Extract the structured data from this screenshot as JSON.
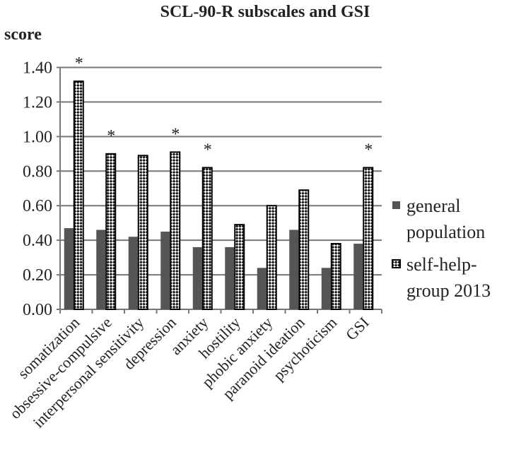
{
  "chart_data": {
    "type": "bar",
    "title": "SCL-90-R subscales and GSI",
    "ylabel": "score",
    "xlabel": "",
    "ylim": [
      0,
      1.4
    ],
    "yticks": [
      "0.00",
      "0.20",
      "0.40",
      "0.60",
      "0.80",
      "1.00",
      "1.20",
      "1.40"
    ],
    "grid": true,
    "legend_position": "right",
    "categories": [
      "somatization",
      "obsessive-compulsive",
      "interpersonal sensitivity",
      "depression",
      "anxiety",
      "hostility",
      "phobic anxiety",
      "paranoid ideation",
      "psychoticism",
      "GSI"
    ],
    "series": [
      {
        "name": "general population",
        "legend_lines": [
          "general",
          "population"
        ],
        "color": "#555555",
        "fill": "solid",
        "values": [
          0.47,
          0.46,
          0.42,
          0.45,
          0.36,
          0.36,
          0.24,
          0.46,
          0.24,
          0.38
        ]
      },
      {
        "name": "self-help-group 2013",
        "legend_lines": [
          "self-help-",
          "group 2013"
        ],
        "color": "#000000",
        "fill": "checkered-pattern",
        "values": [
          1.32,
          0.9,
          0.89,
          0.91,
          0.82,
          0.49,
          0.6,
          0.69,
          0.38,
          0.82
        ]
      }
    ],
    "significance_marker": "*",
    "significant_categories": [
      "somatization",
      "obsessive-compulsive",
      "depression",
      "anxiety",
      "GSI"
    ]
  }
}
